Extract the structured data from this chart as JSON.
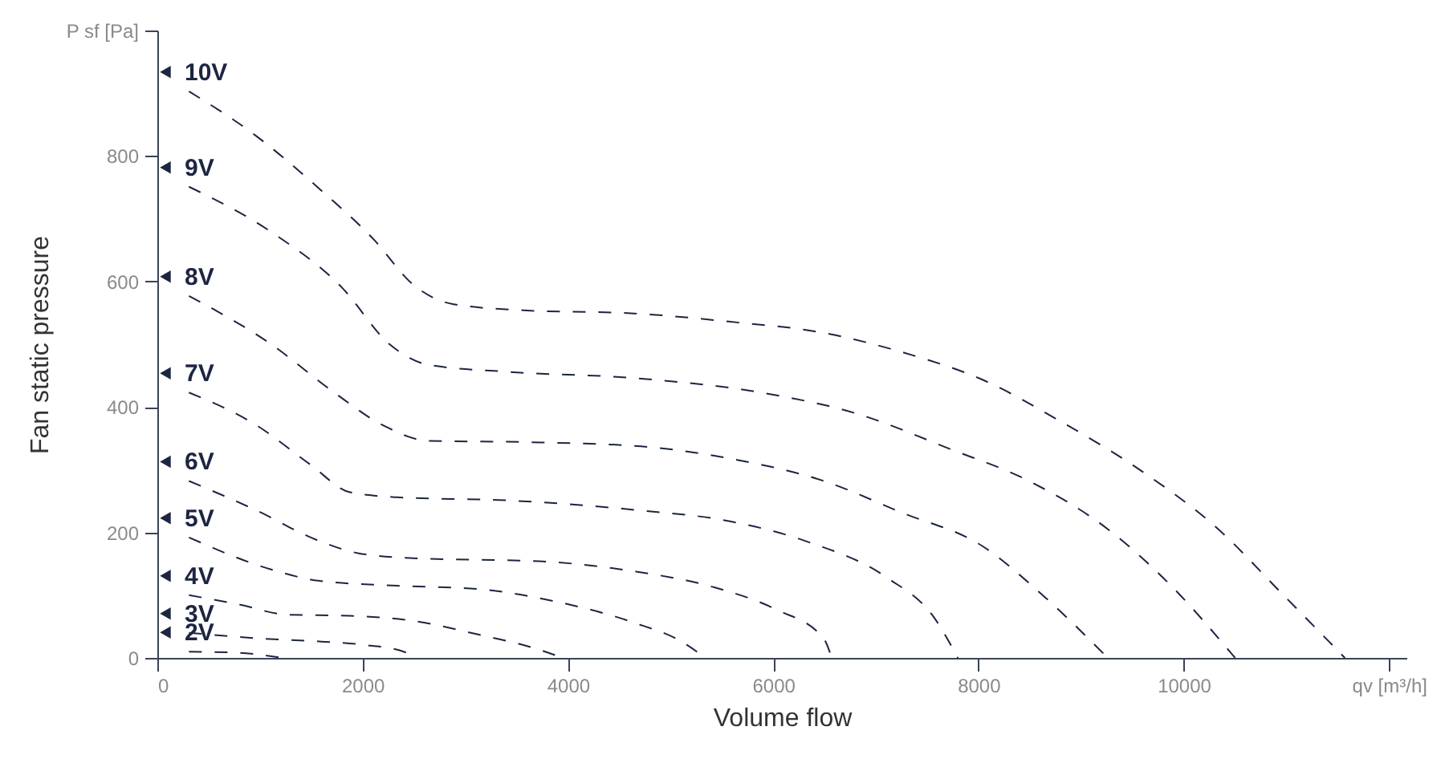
{
  "chart_data": {
    "type": "line",
    "xlabel": "Volume flow",
    "ylabel": "Fan static pressure",
    "xlim": [
      0,
      12170
    ],
    "ylim": [
      0,
      1000
    ],
    "xticks": [
      0,
      2000,
      4000,
      6000,
      8000,
      10000,
      {
        "value": 12000,
        "label": "qv [m³/h]"
      }
    ],
    "yticks": [
      0,
      200,
      400,
      600,
      800,
      {
        "value": 1000,
        "label": "P sf [Pa]"
      }
    ],
    "line_style": "dashed",
    "legend": "left",
    "series": [
      {
        "name": "10V",
        "color": "#1c2541",
        "x": [
          308,
          954,
          1569,
          2108,
          2492,
          2877,
          3569,
          4646,
          5569,
          6492,
          7262,
          8031,
          8800,
          9569,
          10338,
          10954,
          11415,
          11570
        ],
        "values": [
          903,
          833,
          749,
          667,
          595,
          564,
          554,
          549,
          536,
          518,
          487,
          444,
          377,
          300,
          205,
          103,
          26,
          0
        ]
      },
      {
        "name": "9V",
        "color": "#1c2541",
        "x": [
          308,
          1108,
          1800,
          2262,
          2646,
          3415,
          4646,
          5877,
          6800,
          7723,
          8492,
          9262,
          9877,
          10500
        ],
        "values": [
          751,
          679,
          590,
          500,
          467,
          456,
          446,
          423,
          390,
          333,
          282,
          205,
          115,
          0
        ]
      },
      {
        "name": "8V",
        "color": "#1c2541",
        "x": [
          308,
          1108,
          1723,
          2185,
          2646,
          3569,
          4646,
          5569,
          6492,
          7262,
          8031,
          8646,
          9260
        ],
        "values": [
          577,
          500,
          423,
          372,
          346,
          344,
          338,
          318,
          282,
          231,
          179,
          97,
          0
        ]
      },
      {
        "name": "7V",
        "color": "#1c2541",
        "x": [
          308,
          954,
          1492,
          1877,
          2338,
          3415,
          4646,
          5569,
          6338,
          7108,
          7569,
          7800
        ],
        "values": [
          423,
          372,
          308,
          264,
          256,
          251,
          236,
          218,
          185,
          128,
          64,
          0
        ]
      },
      {
        "name": "6V",
        "color": "#1c2541",
        "x": [
          308,
          954,
          1569,
          1954,
          2492,
          3723,
          4646,
          5415,
          6031,
          6492,
          6570
        ],
        "values": [
          282,
          236,
          187,
          167,
          159,
          154,
          138,
          113,
          77,
          31,
          0
        ]
      },
      {
        "name": "5V",
        "color": "#1c2541",
        "x": [
          308,
          1108,
          1569,
          2338,
          3108,
          3877,
          4646,
          5108,
          5340
        ],
        "values": [
          192,
          141,
          123,
          115,
          110,
          90,
          56,
          26,
          0
        ]
      },
      {
        "name": "4V",
        "color": "#1c2541",
        "x": [
          308,
          800,
          1262,
          1877,
          2492,
          3108,
          3723,
          3950
        ],
        "values": [
          100,
          85,
          69,
          67,
          59,
          38,
          13,
          0
        ]
      },
      {
        "name": "3V",
        "color": "#1c2541",
        "x": [
          308,
          1000,
          1600,
          2000,
          2400,
          2520
        ],
        "values": [
          40,
          31,
          26,
          21,
          10,
          0
        ]
      },
      {
        "name": "2V",
        "color": "#1c2541",
        "x": [
          308,
          800,
          1215
        ],
        "values": [
          10,
          8,
          0
        ]
      }
    ]
  }
}
